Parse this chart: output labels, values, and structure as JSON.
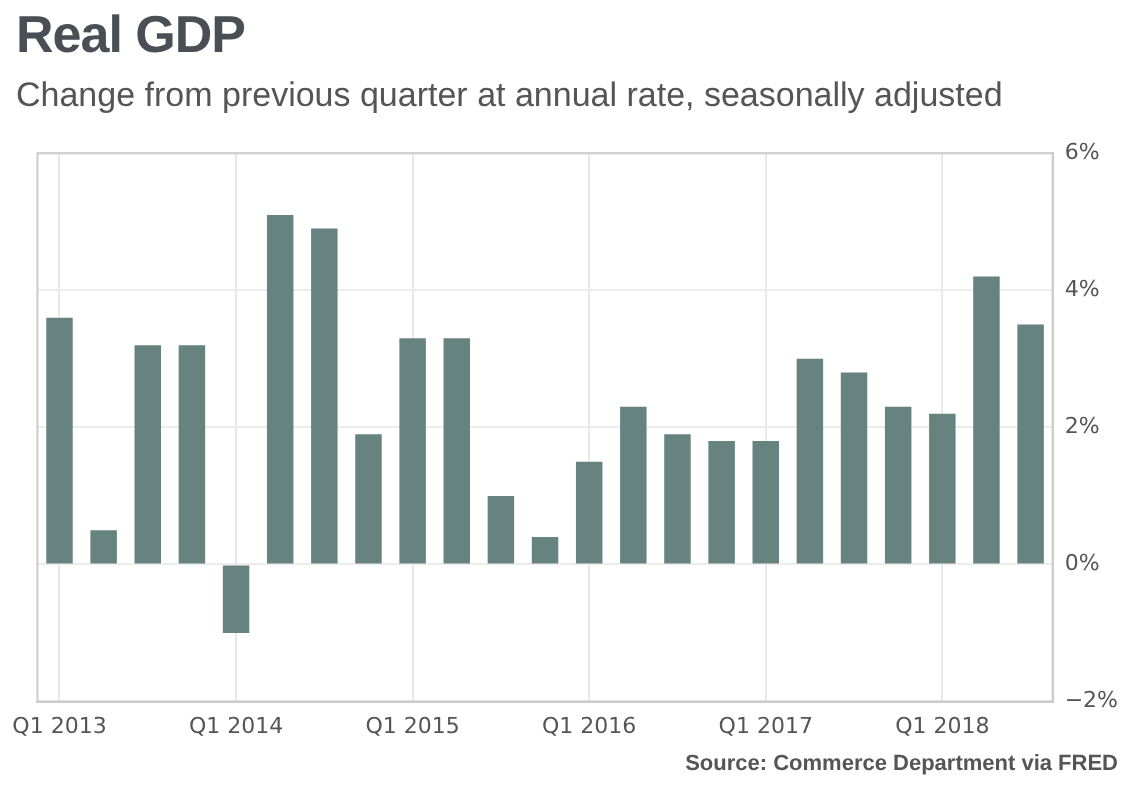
{
  "chart_data": {
    "type": "bar",
    "title": "Real GDP",
    "subtitle": "Change from previous quarter at annual rate, seasonally adjusted",
    "categories": [
      "Q1 2013",
      null,
      null,
      null,
      "Q1 2014",
      null,
      null,
      null,
      "Q1 2015",
      null,
      null,
      null,
      "Q1 2016",
      null,
      null,
      null,
      "Q1 2017",
      null,
      null,
      null,
      "Q1 2018",
      null,
      null
    ],
    "values": [
      3.6,
      0.5,
      3.2,
      3.2,
      -1.0,
      5.1,
      4.9,
      1.9,
      3.3,
      3.3,
      1.0,
      0.4,
      1.5,
      2.3,
      1.9,
      1.8,
      1.8,
      3.0,
      2.8,
      2.3,
      2.2,
      4.2,
      3.5
    ],
    "color": "#668380",
    "ylim": [
      -2,
      6
    ],
    "yticks": [
      {
        "value": -2,
        "label": "−2%"
      },
      {
        "value": 0,
        "label": "0%"
      },
      {
        "value": 2,
        "label": "2%"
      },
      {
        "value": 4,
        "label": "4%"
      },
      {
        "value": 6,
        "label": "6%"
      }
    ],
    "grid": true,
    "annotations": [
      "Source: Commerce Department via FRED"
    ]
  }
}
